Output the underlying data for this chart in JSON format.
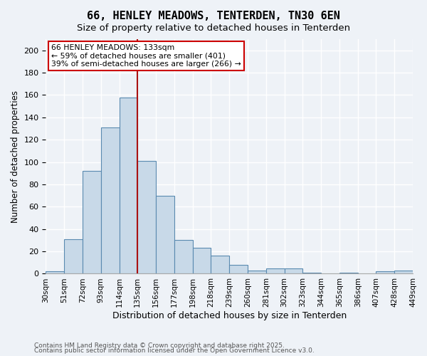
{
  "title": "66, HENLEY MEADOWS, TENTERDEN, TN30 6EN",
  "subtitle": "Size of property relative to detached houses in Tenterden",
  "xlabel": "Distribution of detached houses by size in Tenterden",
  "ylabel": "Number of detached properties",
  "tick_labels": [
    "30sqm",
    "51sqm",
    "72sqm",
    "93sqm",
    "114sqm",
    "135sqm",
    "156sqm",
    "177sqm",
    "198sqm",
    "218sqm",
    "239sqm",
    "260sqm",
    "281sqm",
    "302sqm",
    "323sqm",
    "344sqm",
    "365sqm",
    "386sqm",
    "407sqm",
    "428sqm",
    "449sqm"
  ],
  "bar_values": [
    2,
    31,
    92,
    131,
    158,
    101,
    70,
    30,
    23,
    16,
    8,
    3,
    5,
    5,
    1,
    0,
    1,
    0,
    2,
    3
  ],
  "bar_color": "#c8d9e8",
  "bar_edge_color": "#5a8ab0",
  "vline_x": 5,
  "vline_color": "#aa1111",
  "ylim": [
    0,
    210
  ],
  "yticks": [
    0,
    20,
    40,
    60,
    80,
    100,
    120,
    140,
    160,
    180,
    200
  ],
  "bin_width": 1,
  "annotation_text": "66 HENLEY MEADOWS: 133sqm\n← 59% of detached houses are smaller (401)\n39% of semi-detached houses are larger (266) →",
  "annotation_box_color": "#ffffff",
  "annotation_box_edge": "#cc0000",
  "footer1": "Contains HM Land Registry data © Crown copyright and database right 2025.",
  "footer2": "Contains public sector information licensed under the Open Government Licence v3.0.",
  "background_color": "#eef2f7",
  "grid_color": "#ffffff"
}
